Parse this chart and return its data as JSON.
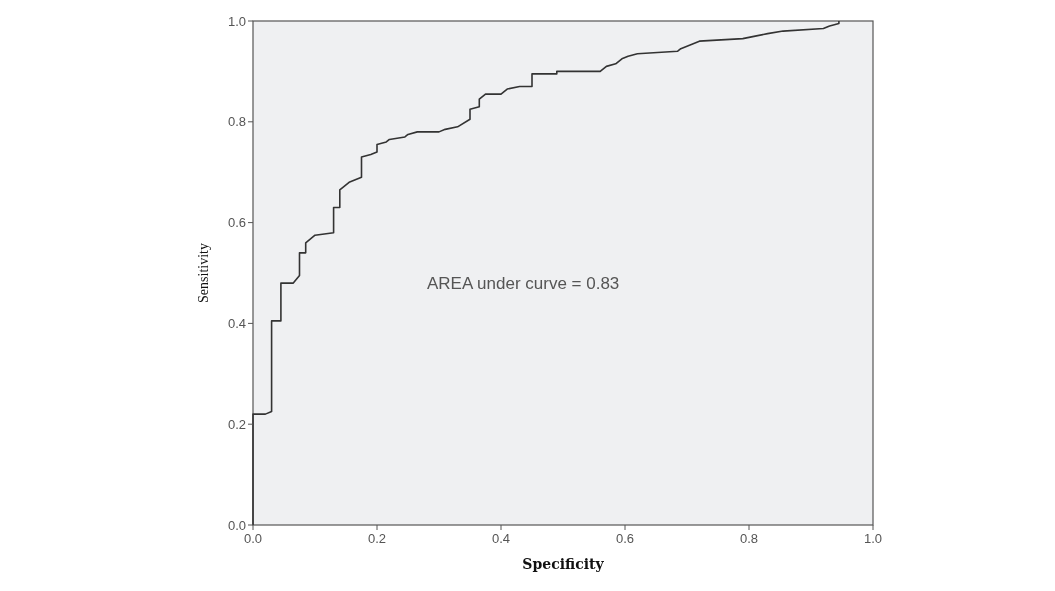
{
  "chart_data": {
    "type": "line",
    "xlabel": "Specificity",
    "ylabel": "Sensitivity",
    "xlim": [
      0,
      1
    ],
    "ylim": [
      0,
      1
    ],
    "xticks": [
      {
        "value": 0,
        "label": "0.0"
      },
      {
        "value": 0.2,
        "label": "0.2"
      },
      {
        "value": 0.4,
        "label": "0.4"
      },
      {
        "value": 0.6,
        "label": "0.6"
      },
      {
        "value": 0.8,
        "label": "0.8"
      },
      {
        "value": 1,
        "label": "1.0"
      }
    ],
    "yticks": [
      {
        "value": 0,
        "label": "0.0"
      },
      {
        "value": 0.2,
        "label": "0.2"
      },
      {
        "value": 0.4,
        "label": "0.4"
      },
      {
        "value": 0.6,
        "label": "0.6"
      },
      {
        "value": 0.8,
        "label": "0.8"
      },
      {
        "value": 1,
        "label": "1.0"
      }
    ],
    "annotations": [
      "AREA under curve = 0.83"
    ],
    "grid": false,
    "marker": "none",
    "line_style": "solid",
    "series": [
      {
        "color": "#333333",
        "x": [
          0,
          0,
          0.02,
          0.03,
          0.03,
          0.045,
          0.045,
          0.065,
          0.075,
          0.075,
          0.085,
          0.085,
          0.1,
          0.13,
          0.13,
          0.14,
          0.14,
          0.155,
          0.165,
          0.175,
          0.175,
          0.19,
          0.2,
          0.2,
          0.215,
          0.22,
          0.245,
          0.25,
          0.265,
          0.3,
          0.31,
          0.33,
          0.35,
          0.35,
          0.365,
          0.365,
          0.375,
          0.4,
          0.41,
          0.43,
          0.45,
          0.45,
          0.49,
          0.49,
          0.56,
          0.57,
          0.585,
          0.595,
          0.605,
          0.62,
          0.685,
          0.69,
          0.71,
          0.72,
          0.79,
          0.81,
          0.83,
          0.855,
          0.92,
          0.93,
          0.945,
          0.945
        ],
        "values": [
          0,
          0.22,
          0.22,
          0.225,
          0.405,
          0.405,
          0.48,
          0.48,
          0.495,
          0.54,
          0.54,
          0.56,
          0.575,
          0.58,
          0.63,
          0.63,
          0.665,
          0.68,
          0.685,
          0.69,
          0.73,
          0.735,
          0.74,
          0.755,
          0.76,
          0.765,
          0.77,
          0.775,
          0.78,
          0.78,
          0.785,
          0.79,
          0.805,
          0.825,
          0.83,
          0.845,
          0.855,
          0.855,
          0.865,
          0.87,
          0.87,
          0.895,
          0.895,
          0.9,
          0.9,
          0.91,
          0.915,
          0.925,
          0.93,
          0.935,
          0.94,
          0.945,
          0.955,
          0.96,
          0.965,
          0.97,
          0.975,
          0.98,
          0.985,
          0.99,
          0.995,
          1
        ]
      }
    ]
  }
}
